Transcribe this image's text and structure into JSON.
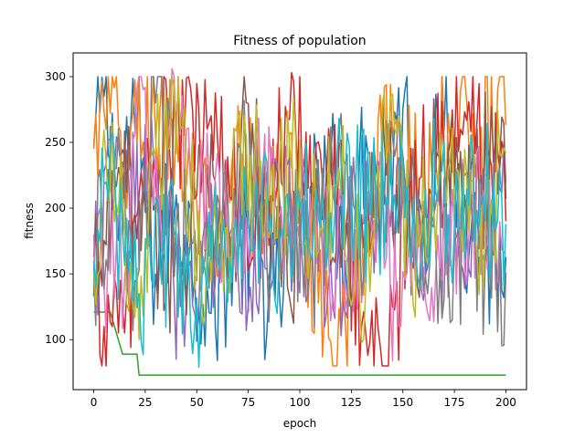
{
  "chart_data": {
    "type": "line",
    "title": "Fitness of population",
    "xlabel": "epoch",
    "ylabel": "fitness",
    "xlim": [
      -10,
      210
    ],
    "ylim": [
      62,
      318
    ],
    "xticks": [
      0,
      25,
      50,
      75,
      100,
      125,
      150,
      175,
      200
    ],
    "yticks": [
      100,
      150,
      200,
      250,
      300
    ],
    "grid": false,
    "legend": "none",
    "epochs": 200,
    "colors": [
      "#1f77b4",
      "#ff7f0e",
      "#2ca02c",
      "#d62728",
      "#9467bd",
      "#8c564b",
      "#e377c2",
      "#7f7f7f",
      "#bcbd22",
      "#17becf"
    ],
    "series": [
      {
        "color": "#1f77b4",
        "values_note": "",
        "points": [
          [
            0,
            247
          ],
          [
            5,
            285
          ],
          [
            10,
            225
          ],
          [
            21,
            262
          ],
          [
            30,
            150
          ],
          [
            40,
            210
          ],
          [
            57,
            120
          ],
          [
            70,
            180
          ],
          [
            88,
            130
          ],
          [
            100,
            182
          ],
          [
            112,
            255
          ],
          [
            122,
            160
          ],
          [
            132,
            255
          ],
          [
            140,
            228
          ],
          [
            150,
            275
          ],
          [
            160,
            190
          ],
          [
            170,
            259
          ],
          [
            183,
            180
          ],
          [
            190,
            160
          ],
          [
            200,
            163
          ]
        ]
      },
      {
        "color": "#ff7f0e",
        "points": [
          [
            0,
            245
          ],
          [
            8,
            272
          ],
          [
            15,
            240
          ],
          [
            28,
            270
          ],
          [
            38,
            262
          ],
          [
            50,
            205
          ],
          [
            60,
            148
          ],
          [
            72,
            240
          ],
          [
            84,
            195
          ],
          [
            100,
            205
          ],
          [
            112,
            120
          ],
          [
            126,
            130
          ],
          [
            140,
            240
          ],
          [
            150,
            240
          ],
          [
            160,
            205
          ],
          [
            170,
            250
          ],
          [
            178,
            290
          ],
          [
            186,
            240
          ],
          [
            196,
            290
          ],
          [
            200,
            263
          ]
        ]
      },
      {
        "color": "#2ca02c",
        "points": [
          [
            0,
            121
          ],
          [
            4,
            121
          ],
          [
            8,
            121
          ],
          [
            14,
            89
          ],
          [
            18,
            89
          ],
          [
            21,
            89
          ],
          [
            22,
            73
          ],
          [
            30,
            73
          ],
          [
            60,
            73
          ],
          [
            100,
            73
          ],
          [
            150,
            73
          ],
          [
            200,
            73
          ]
        ]
      },
      {
        "color": "#d62728",
        "points": [
          [
            0,
            163
          ],
          [
            5,
            110
          ],
          [
            9,
            110
          ],
          [
            12,
            105
          ],
          [
            15,
            105
          ],
          [
            22,
            210
          ],
          [
            40,
            260
          ],
          [
            55,
            260
          ],
          [
            70,
            195
          ],
          [
            85,
            205
          ],
          [
            96,
            303
          ],
          [
            104,
            215
          ],
          [
            115,
            240
          ],
          [
            132,
            105
          ],
          [
            143,
            80
          ],
          [
            152,
            195
          ],
          [
            165,
            255
          ],
          [
            178,
            260
          ],
          [
            190,
            258
          ],
          [
            200,
            190
          ]
        ]
      },
      {
        "color": "#9467bd",
        "points": [
          [
            0,
            150
          ],
          [
            10,
            225
          ],
          [
            20,
            195
          ],
          [
            30,
            230
          ],
          [
            42,
            125
          ],
          [
            52,
            175
          ],
          [
            66,
            180
          ],
          [
            76,
            140
          ],
          [
            90,
            210
          ],
          [
            102,
            185
          ],
          [
            114,
            145
          ],
          [
            128,
            185
          ],
          [
            140,
            215
          ],
          [
            152,
            190
          ],
          [
            162,
            175
          ],
          [
            176,
            155
          ],
          [
            186,
            195
          ],
          [
            196,
            225
          ],
          [
            200,
            219
          ]
        ]
      },
      {
        "color": "#8c564b",
        "points": [
          [
            0,
            133
          ],
          [
            6,
            172
          ],
          [
            16,
            212
          ],
          [
            26,
            200
          ],
          [
            36,
            160
          ],
          [
            46,
            165
          ],
          [
            58,
            225
          ],
          [
            68,
            185
          ],
          [
            74,
            280
          ],
          [
            84,
            220
          ],
          [
            94,
            140
          ],
          [
            108,
            230
          ],
          [
            120,
            155
          ],
          [
            130,
            195
          ],
          [
            142,
            225
          ],
          [
            156,
            175
          ],
          [
            168,
            240
          ],
          [
            180,
            210
          ],
          [
            192,
            235
          ],
          [
            200,
            207
          ]
        ]
      },
      {
        "color": "#e377c2",
        "points": [
          [
            0,
            180
          ],
          [
            8,
            150
          ],
          [
            16,
            165
          ],
          [
            24,
            290
          ],
          [
            34,
            165
          ],
          [
            38,
            306
          ],
          [
            48,
            205
          ],
          [
            58,
            195
          ],
          [
            70,
            170
          ],
          [
            82,
            225
          ],
          [
            92,
            150
          ],
          [
            102,
            220
          ],
          [
            114,
            165
          ],
          [
            124,
            170
          ],
          [
            138,
            210
          ],
          [
            148,
            110
          ],
          [
            160,
            155
          ],
          [
            172,
            183
          ],
          [
            184,
            200
          ],
          [
            200,
            165
          ]
        ]
      },
      {
        "color": "#7f7f7f",
        "points": [
          [
            0,
            150
          ],
          [
            10,
            230
          ],
          [
            20,
            145
          ],
          [
            30,
            280
          ],
          [
            40,
            190
          ],
          [
            50,
            145
          ],
          [
            62,
            170
          ],
          [
            74,
            230
          ],
          [
            84,
            160
          ],
          [
            96,
            200
          ],
          [
            106,
            160
          ],
          [
            118,
            235
          ],
          [
            128,
            170
          ],
          [
            138,
            215
          ],
          [
            150,
            240
          ],
          [
            158,
            195
          ],
          [
            172,
            150
          ],
          [
            182,
            185
          ],
          [
            192,
            155
          ],
          [
            200,
            151
          ]
        ]
      },
      {
        "color": "#bcbd22",
        "points": [
          [
            0,
            152
          ],
          [
            6,
            235
          ],
          [
            12,
            195
          ],
          [
            22,
            100
          ],
          [
            30,
            240
          ],
          [
            42,
            260
          ],
          [
            52,
            150
          ],
          [
            64,
            185
          ],
          [
            76,
            240
          ],
          [
            86,
            190
          ],
          [
            96,
            230
          ],
          [
            110,
            185
          ],
          [
            120,
            210
          ],
          [
            132,
            140
          ],
          [
            144,
            285
          ],
          [
            154,
            165
          ],
          [
            164,
            215
          ],
          [
            176,
            230
          ],
          [
            186,
            165
          ],
          [
            200,
            242
          ]
        ]
      },
      {
        "color": "#17becf",
        "points": [
          [
            0,
            160
          ],
          [
            6,
            220
          ],
          [
            14,
            180
          ],
          [
            22,
            135
          ],
          [
            32,
            160
          ],
          [
            42,
            170
          ],
          [
            51,
            79
          ],
          [
            58,
            200
          ],
          [
            68,
            180
          ],
          [
            78,
            210
          ],
          [
            90,
            165
          ],
          [
            100,
            200
          ],
          [
            110,
            185
          ],
          [
            122,
            225
          ],
          [
            134,
            195
          ],
          [
            146,
            210
          ],
          [
            156,
            175
          ],
          [
            168,
            225
          ],
          [
            178,
            185
          ],
          [
            188,
            210
          ],
          [
            200,
            188
          ]
        ]
      }
    ]
  }
}
